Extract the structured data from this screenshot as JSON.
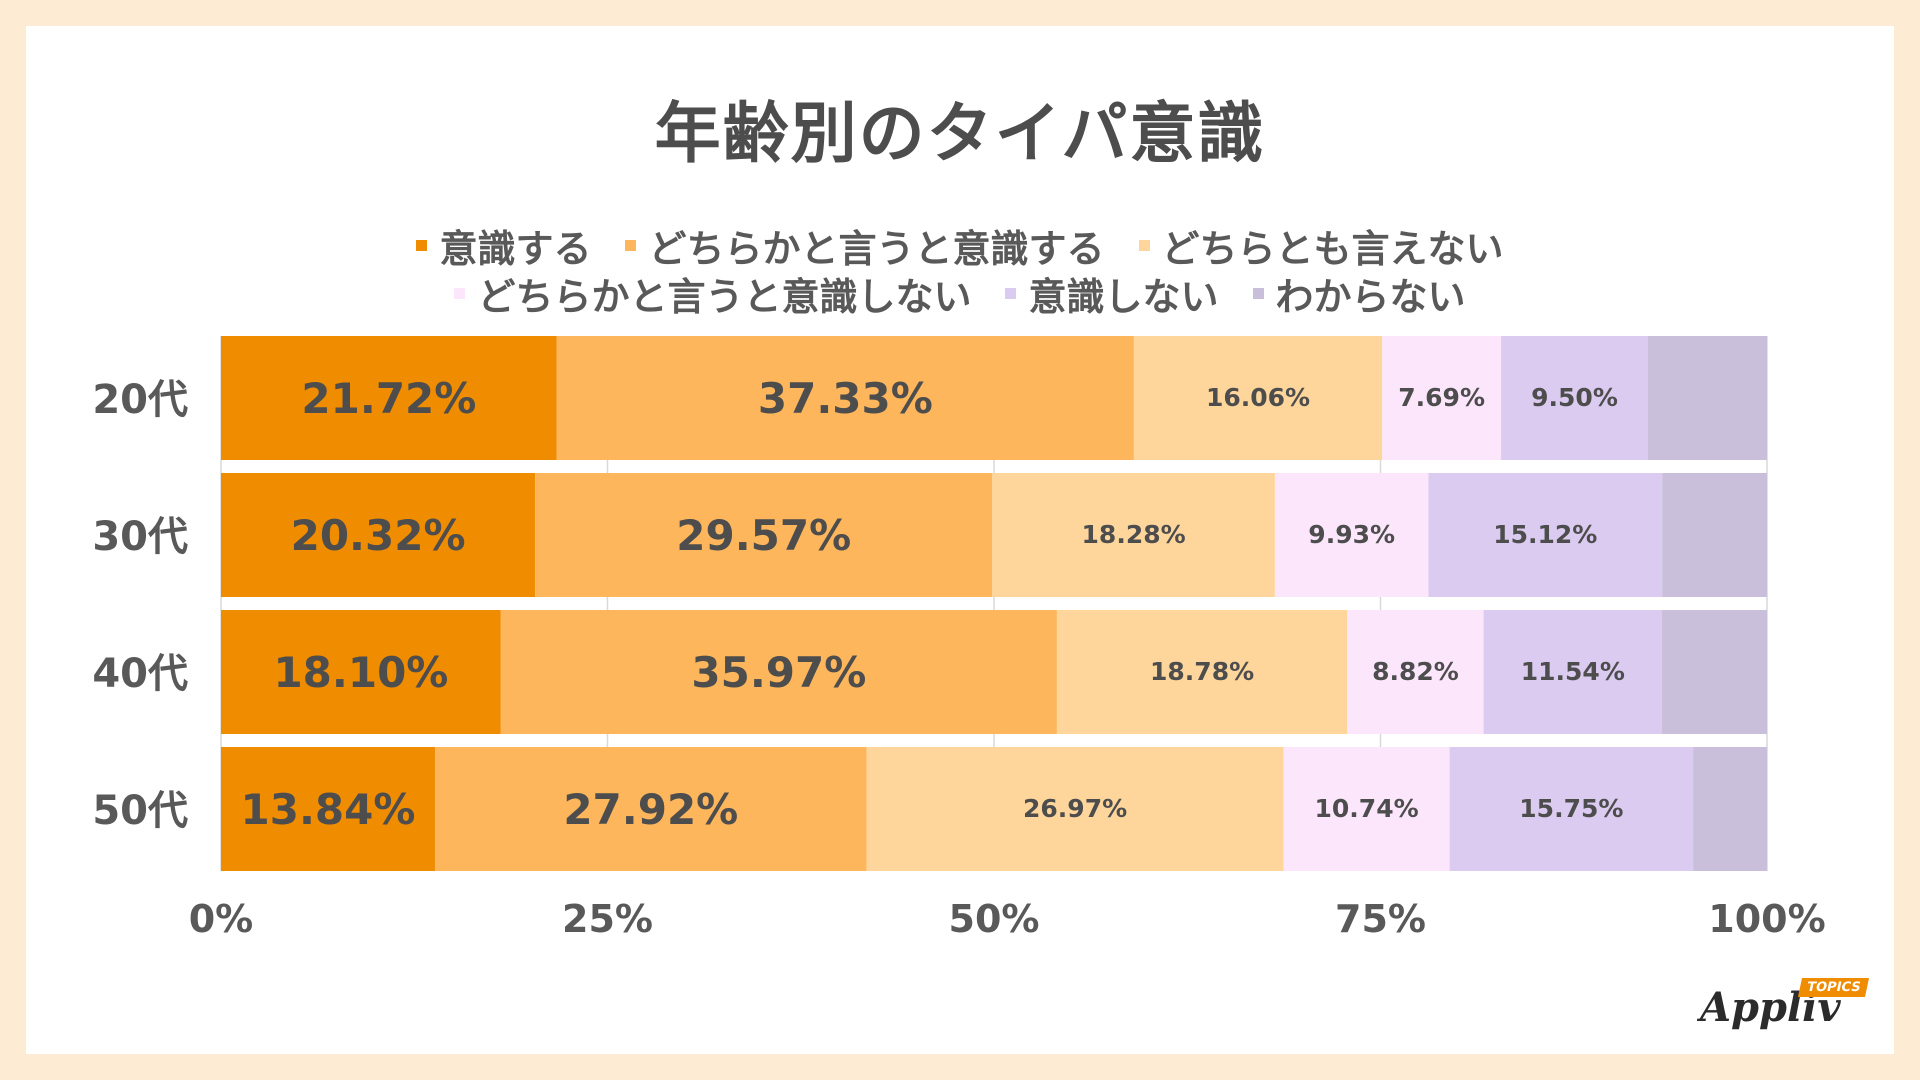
{
  "title": "年齢別のタイパ意識",
  "chart_data": {
    "type": "bar",
    "orientation": "horizontal",
    "stacked": "percent",
    "categories": [
      "20代",
      "30代",
      "40代",
      "50代"
    ],
    "series": [
      {
        "name": "意識する",
        "color": "#f08c00",
        "values": [
          21.72,
          20.32,
          18.1,
          13.84
        ],
        "labels": [
          "21.72%",
          "20.32%",
          "18.10%",
          "13.84%"
        ]
      },
      {
        "name": "どちらかと言うと意識する",
        "color": "#fdb65b",
        "values": [
          37.33,
          29.57,
          35.97,
          27.92
        ],
        "labels": [
          "37.33%",
          "29.57%",
          "35.97%",
          "27.92%"
        ]
      },
      {
        "name": "どちらとも言えない",
        "color": "#fed69c",
        "values": [
          16.06,
          18.28,
          18.78,
          26.97
        ],
        "labels": [
          "16.06%",
          "18.28%",
          "18.78%",
          "26.97%"
        ]
      },
      {
        "name": "どちらかと言うと意識しない",
        "color": "#fce6fb",
        "values": [
          7.69,
          9.93,
          8.82,
          10.74
        ],
        "labels": [
          "7.69%",
          "9.93%",
          "8.82%",
          "10.74%"
        ]
      },
      {
        "name": "意識しない",
        "color": "#dccbf0",
        "values": [
          9.5,
          15.12,
          11.54,
          15.75
        ],
        "labels": [
          "9.50%",
          "15.12%",
          "11.54%",
          "15.75%"
        ]
      },
      {
        "name": "わからない",
        "color": "#c9bfda",
        "values": [
          7.7,
          6.78,
          6.79,
          4.78
        ],
        "labels": [
          "",
          "",
          "",
          ""
        ]
      }
    ],
    "x_ticks": [
      "0%",
      "25%",
      "50%",
      "75%",
      "100%"
    ],
    "xlim": [
      0,
      100
    ],
    "grid": true,
    "legend_position": "top"
  },
  "logo": {
    "text": "Appliv",
    "badge": "TOPICS"
  }
}
